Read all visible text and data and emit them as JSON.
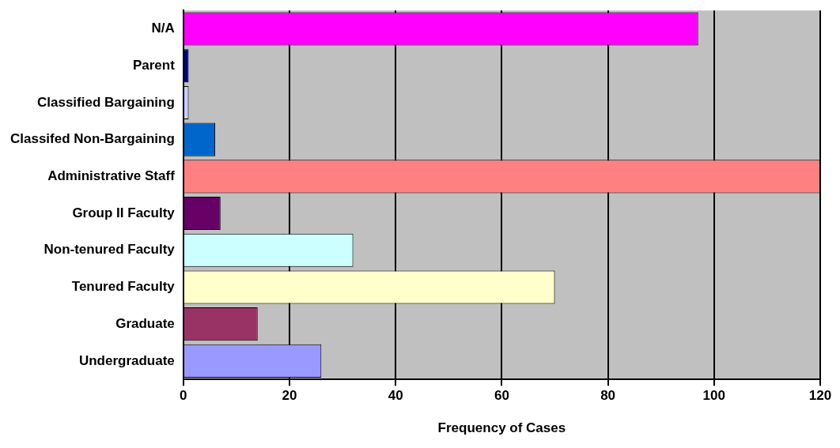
{
  "chart_data": {
    "type": "bar",
    "orientation": "horizontal",
    "xlabel": "Frequency of Cases",
    "categories": [
      "N/A",
      "Parent",
      "Classified Bargaining",
      "Classifed Non-Bargaining",
      "Administrative Staff",
      "Group II Faculty",
      "Non-tenured Faculty",
      "Tenured Faculty",
      "Graduate",
      "Undergraduate"
    ],
    "values": [
      97,
      1,
      1,
      6,
      120,
      7,
      32,
      70,
      14,
      26
    ],
    "colors": [
      "#ff00ff",
      "#000080",
      "#ccccff",
      "#0066cc",
      "#ff8080",
      "#660066",
      "#ccffff",
      "#ffffcc",
      "#993366",
      "#9999ff"
    ],
    "xlim": [
      0,
      120
    ],
    "xticks": [
      0,
      20,
      40,
      60,
      80,
      100,
      120
    ],
    "grid": "x",
    "legend": false
  }
}
